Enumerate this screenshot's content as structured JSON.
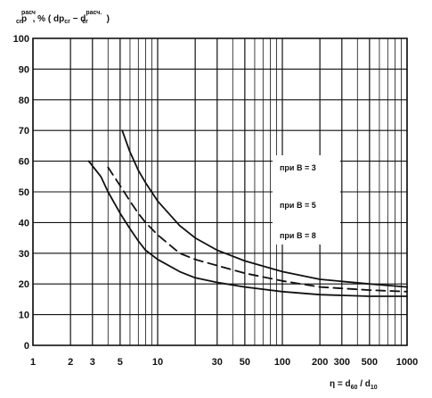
{
  "chart_data": {
    "type": "line",
    "title": "",
    "ylabel": {
      "base": "p",
      "base_sub": "cr",
      "base_sup": "расч",
      "mid": ", % ( dp",
      "mid_sub": "cr",
      "minus": " − d",
      "minus_sub": "cr",
      "minus_sup": "расч.",
      "tail": " )"
    },
    "xlabel": {
      "text": "η = d",
      "sub1": "60",
      "slash": " / d",
      "sub2": "10"
    },
    "x_scale": "log",
    "xlim": [
      1,
      1000
    ],
    "ylim": [
      0,
      100
    ],
    "xticks": [
      1,
      2,
      3,
      5,
      10,
      30,
      50,
      100,
      200,
      300,
      500,
      1000
    ],
    "xtick_labels": [
      "1",
      "2",
      "3",
      "5",
      "10",
      "30",
      "50",
      "100",
      "200",
      "300",
      "500",
      "1000"
    ],
    "yticks": [
      0,
      10,
      20,
      30,
      40,
      50,
      60,
      70,
      80,
      90,
      100
    ],
    "ytick_labels": [
      "0",
      "10",
      "20",
      "30",
      "40",
      "50",
      "60",
      "70",
      "80",
      "90",
      "100"
    ],
    "grid": true,
    "series": [
      {
        "name": "при B = 3",
        "style": "solid",
        "x": [
          2.8,
          3.5,
          4,
          5,
          6,
          7,
          8,
          10,
          15,
          20,
          30,
          50,
          100,
          200,
          500,
          1000
        ],
        "y": [
          60,
          55,
          50,
          43,
          38,
          34,
          31,
          28,
          24,
          22,
          20.5,
          19,
          17.5,
          16.5,
          16,
          16
        ]
      },
      {
        "name": "при B = 5",
        "style": "dashed",
        "x": [
          4,
          5,
          6,
          7,
          8,
          10,
          15,
          20,
          30,
          50,
          100,
          200,
          500,
          1000
        ],
        "y": [
          58,
          52,
          47,
          43,
          40,
          36,
          30,
          28,
          26,
          23.5,
          21,
          19,
          18,
          17.5
        ]
      },
      {
        "name": "при B = 8",
        "style": "solid",
        "x": [
          5.2,
          6,
          7,
          8,
          10,
          15,
          20,
          30,
          50,
          100,
          200,
          500,
          1000
        ],
        "y": [
          70,
          63,
          57,
          53,
          47,
          39,
          35,
          31,
          27.5,
          24,
          21.5,
          20,
          19
        ]
      }
    ],
    "legend": [
      "при B = 3",
      "при B = 5",
      "при B = 8"
    ],
    "legend_position": "right"
  },
  "colors": {
    "ink": "#111111",
    "background": "#ffffff"
  }
}
